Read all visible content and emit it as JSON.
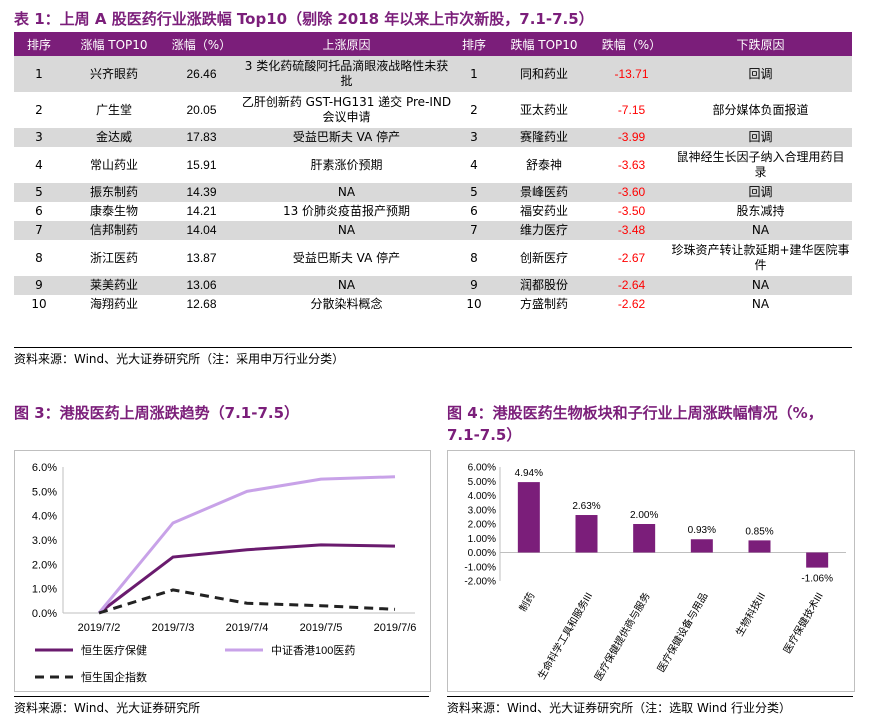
{
  "table": {
    "title": "表 1：上周 A 股医药行业涨跌幅 Top10（剔除 2018 年以来上市次新股，7.1-7.5）",
    "headers": [
      "排序",
      "涨幅 TOP10",
      "涨幅（%）",
      "上涨原因",
      "排序",
      "跌幅 TOP10",
      "跌幅（%）",
      "下跌原因"
    ],
    "rows": [
      {
        "rank_up": "1",
        "up_name": "兴齐眼药",
        "up_pct": "26.46",
        "up_reason": "3 类化药硫酸阿托品滴眼液战略性未获批",
        "rank_down": "1",
        "down_name": "同和药业",
        "down_pct": "-13.71",
        "down_reason": "回调"
      },
      {
        "rank_up": "2",
        "up_name": "广生堂",
        "up_pct": "20.05",
        "up_reason": "乙肝创新药 GST-HG131 递交 Pre-IND 会议申请",
        "rank_down": "2",
        "down_name": "亚太药业",
        "down_pct": "-7.15",
        "down_reason": "部分媒体负面报道"
      },
      {
        "rank_up": "3",
        "up_name": "金达威",
        "up_pct": "17.83",
        "up_reason": "受益巴斯夫 VA 停产",
        "rank_down": "3",
        "down_name": "赛隆药业",
        "down_pct": "-3.99",
        "down_reason": "回调"
      },
      {
        "rank_up": "4",
        "up_name": "常山药业",
        "up_pct": "15.91",
        "up_reason": "肝素涨价预期",
        "rank_down": "4",
        "down_name": "舒泰神",
        "down_pct": "-3.63",
        "down_reason": "鼠神经生长因子纳入合理用药目录"
      },
      {
        "rank_up": "5",
        "up_name": "振东制药",
        "up_pct": "14.39",
        "up_reason": "NA",
        "rank_down": "5",
        "down_name": "景峰医药",
        "down_pct": "-3.60",
        "down_reason": "回调"
      },
      {
        "rank_up": "6",
        "up_name": "康泰生物",
        "up_pct": "14.21",
        "up_reason": "13 价肺炎疫苗报产预期",
        "rank_down": "6",
        "down_name": "福安药业",
        "down_pct": "-3.50",
        "down_reason": "股东减持"
      },
      {
        "rank_up": "7",
        "up_name": "信邦制药",
        "up_pct": "14.04",
        "up_reason": "NA",
        "rank_down": "7",
        "down_name": "维力医疗",
        "down_pct": "-3.48",
        "down_reason": "NA"
      },
      {
        "rank_up": "8",
        "up_name": "浙江医药",
        "up_pct": "13.87",
        "up_reason": "受益巴斯夫 VA 停产",
        "rank_down": "8",
        "down_name": "创新医疗",
        "down_pct": "-2.67",
        "down_reason": "珍珠资产转让款延期+建华医院事件"
      },
      {
        "rank_up": "9",
        "up_name": "莱美药业",
        "up_pct": "13.06",
        "up_reason": "NA",
        "rank_down": "9",
        "down_name": "润都股份",
        "down_pct": "-2.64",
        "down_reason": "NA"
      },
      {
        "rank_up": "10",
        "up_name": "海翔药业",
        "up_pct": "12.68",
        "up_reason": "分散染料概念",
        "rank_down": "10",
        "down_name": "方盛制药",
        "down_pct": "-2.62",
        "down_reason": "NA"
      }
    ],
    "source": "资料来源：Wind、光大证券研究所（注：采用申万行业分类）"
  },
  "chart_data": [
    {
      "type": "line",
      "title": "图 3：港股医药上周涨跌趋势（7.1-7.5）",
      "x": [
        "2019/7/2",
        "2019/7/3",
        "2019/7/4",
        "2019/7/5",
        "2019/7/6"
      ],
      "series": [
        {
          "name": "恒生医疗保健",
          "values": [
            0.0,
            2.3,
            2.6,
            2.8,
            2.75
          ],
          "color": "#6a1b6e",
          "dash": "solid"
        },
        {
          "name": "中证香港100医药",
          "values": [
            0.0,
            3.7,
            5.0,
            5.5,
            5.6
          ],
          "color": "#c8a2e8",
          "dash": "solid"
        },
        {
          "name": "恒生国企指数",
          "values": [
            0.0,
            0.95,
            0.4,
            0.3,
            0.15
          ],
          "color": "#222222",
          "dash": "dashed"
        }
      ],
      "yticks": [
        "6.0%",
        "5.0%",
        "4.0%",
        "3.0%",
        "2.0%",
        "1.0%",
        "0.0%"
      ],
      "ylim": [
        0,
        6
      ],
      "source": "资料来源：Wind、光大证券研究所"
    },
    {
      "type": "bar",
      "title": "图 4：港股医药生物板块和子行业上周涨跌幅情况（%，7.1-7.5）",
      "title_line1": "图 4：港股医药生物板块和子行业上周涨跌幅情况（%，",
      "title_line2": "7.1-7.5）",
      "categories": [
        "制药",
        "生命科学工具和服务III",
        "医疗保健提供商与服务",
        "医疗保健设备与用品",
        "生物科技III",
        "医疗保健技术III"
      ],
      "values": [
        4.94,
        2.63,
        2.0,
        0.93,
        0.85,
        -1.06
      ],
      "value_labels": [
        "4.94%",
        "2.63%",
        "2.00%",
        "0.93%",
        "0.85%",
        "-1.06%"
      ],
      "color": "#7b1e7a",
      "yticks": [
        "6.00%",
        "5.00%",
        "4.00%",
        "3.00%",
        "2.00%",
        "1.00%",
        "0.00%",
        "-1.00%",
        "-2.00%"
      ],
      "ylim": [
        -2,
        6
      ],
      "source": "资料来源：Wind、光大证券研究所（注：选取 Wind 行业分类）"
    }
  ]
}
